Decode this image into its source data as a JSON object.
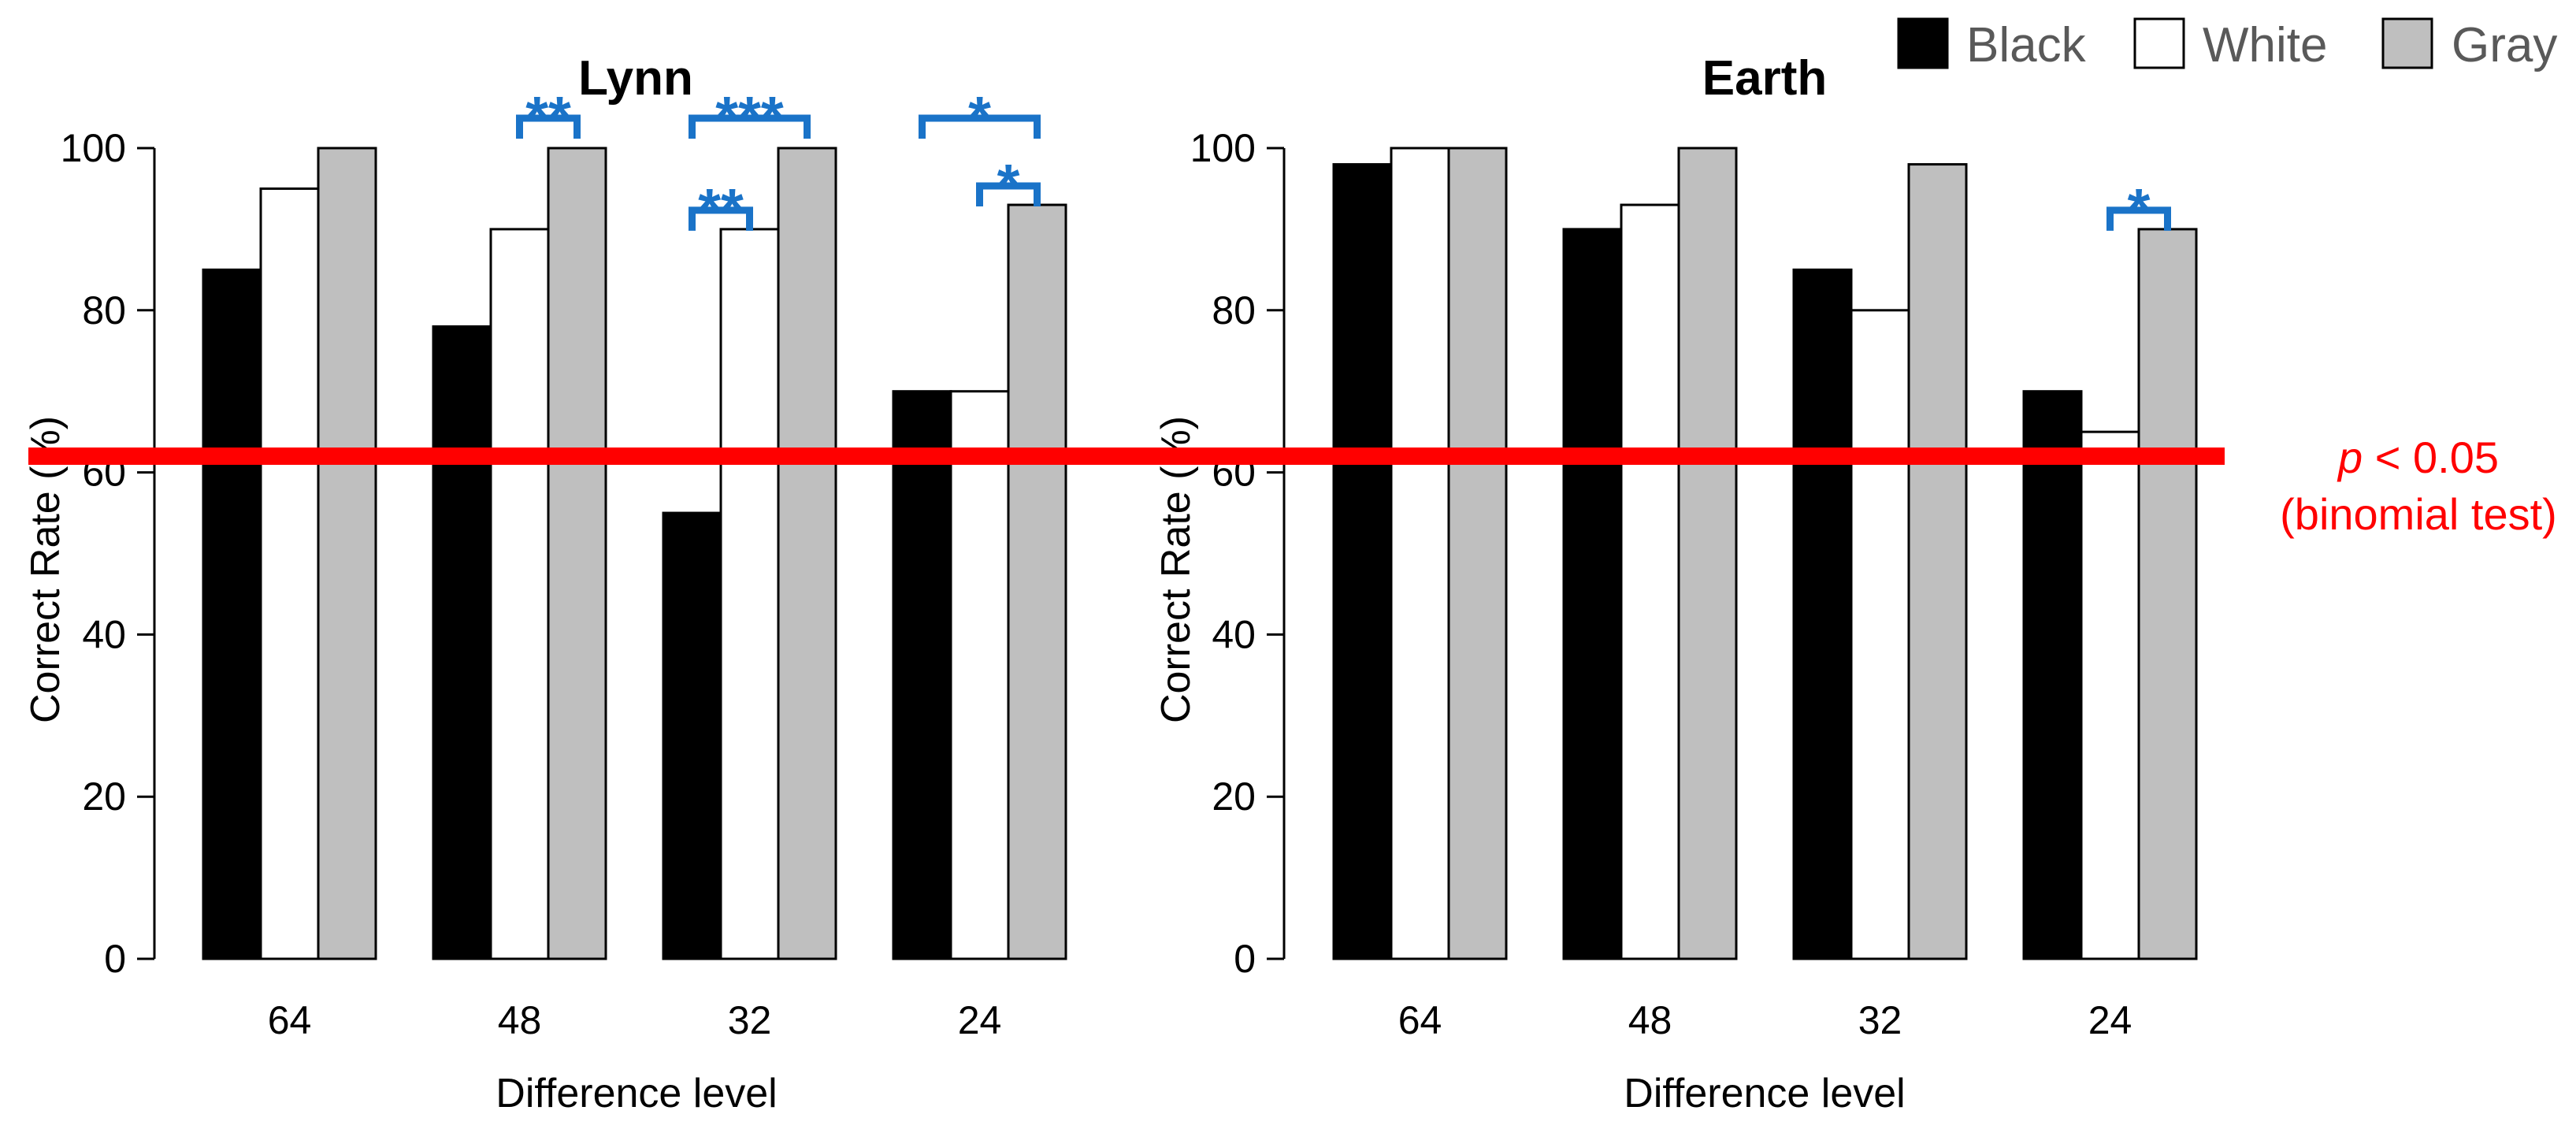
{
  "colors": {
    "black_bar": "#000000",
    "white_bar": "#ffffff",
    "gray_bar": "#bfbfbf",
    "significance": "#1a73c8",
    "threshold": "#ff0000",
    "legend_text": "#595959"
  },
  "legend": [
    {
      "label": "Black",
      "color": "#000000"
    },
    {
      "label": "White",
      "color": "#ffffff"
    },
    {
      "label": "Gray",
      "color": "#bfbfbf"
    }
  ],
  "threshold": {
    "value": 62,
    "label_p": "p",
    "label_rest": " < 0.05",
    "label_line2": "(binomial test)"
  },
  "chart_data": [
    {
      "type": "bar",
      "title": "Lynn",
      "xlabel": "Difference level",
      "ylabel": "Correct Rate (%)",
      "ylim": [
        0,
        100
      ],
      "yticks": [
        "0",
        "20",
        "40",
        "60",
        "80",
        "100"
      ],
      "categories": [
        "64",
        "48",
        "32",
        "24"
      ],
      "series": [
        {
          "name": "Black",
          "values": [
            85,
            78,
            55,
            70
          ]
        },
        {
          "name": "White",
          "values": [
            95,
            90,
            90,
            70
          ]
        },
        {
          "name": "Gray",
          "values": [
            100,
            100,
            100,
            93
          ]
        }
      ],
      "significance": [
        {
          "category": 1,
          "from": "White",
          "to": "Gray",
          "label": "**",
          "level": 0
        },
        {
          "category": 2,
          "from": "Black",
          "to": "White",
          "label": "**",
          "level": 1
        },
        {
          "category": 2,
          "from": "Black",
          "to": "Gray",
          "label": "***",
          "level": 0
        },
        {
          "category": 3,
          "from": "Black",
          "to": "Gray",
          "label": "*",
          "level": 0
        },
        {
          "category": 3,
          "from": "White",
          "to": "Gray",
          "label": "*",
          "level": 1
        }
      ]
    },
    {
      "type": "bar",
      "title": "Earth",
      "xlabel": "Difference level",
      "ylabel": "Correct Rate (%)",
      "ylim": [
        0,
        100
      ],
      "yticks": [
        "0",
        "20",
        "40",
        "60",
        "80",
        "100"
      ],
      "categories": [
        "64",
        "48",
        "32",
        "24"
      ],
      "series": [
        {
          "name": "Black",
          "values": [
            98,
            90,
            85,
            70
          ]
        },
        {
          "name": "White",
          "values": [
            100,
            93,
            80,
            65
          ]
        },
        {
          "name": "Gray",
          "values": [
            100,
            100,
            98,
            90
          ]
        }
      ],
      "significance": [
        {
          "category": 3,
          "from": "White",
          "to": "Gray",
          "label": "*",
          "level": 1
        }
      ]
    }
  ]
}
